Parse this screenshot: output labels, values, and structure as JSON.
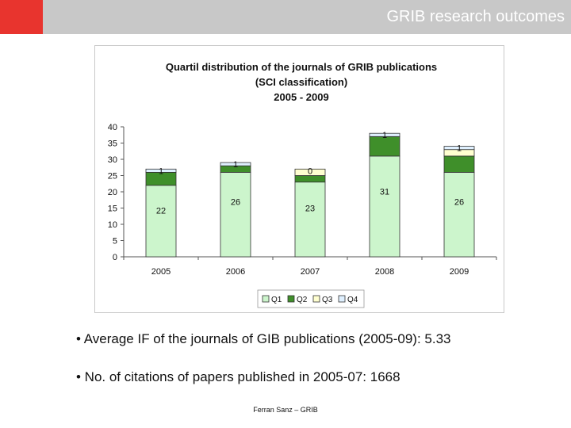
{
  "header": {
    "title": "GRIB research outcomes",
    "accent_color": "#e8342e",
    "bar_color": "#c8c8c8"
  },
  "chart_data": {
    "type": "bar",
    "stacked": true,
    "title_lines": [
      "Quartil distribution of the journals of GRIB publications",
      "(SCI classification)",
      "2005 - 2009"
    ],
    "categories": [
      "2005",
      "2006",
      "2007",
      "2008",
      "2009"
    ],
    "series": [
      {
        "name": "Q1",
        "values": [
          22,
          26,
          23,
          31,
          26
        ],
        "color": "#ccf5cc"
      },
      {
        "name": "Q2",
        "values": [
          4,
          2,
          2,
          6,
          5
        ],
        "color": "#3f8f2a"
      },
      {
        "name": "Q3",
        "values": [
          0,
          0,
          2,
          0,
          2
        ],
        "color": "#ffffd0"
      },
      {
        "name": "Q4",
        "values": [
          1,
          1,
          0,
          1,
          1
        ],
        "color": "#dff0ff"
      }
    ],
    "data_labels": [
      {
        "category": "2005",
        "series": "Q1",
        "text": "22"
      },
      {
        "category": "2006",
        "series": "Q1",
        "text": "26"
      },
      {
        "category": "2007",
        "series": "Q1",
        "text": "23"
      },
      {
        "category": "2008",
        "series": "Q1",
        "text": "31"
      },
      {
        "category": "2009",
        "series": "Q1",
        "text": "26"
      },
      {
        "category": "2005",
        "series": "Q4",
        "text": "1"
      },
      {
        "category": "2006",
        "series": "Q4",
        "text": "1"
      },
      {
        "category": "2007",
        "series": "Q4",
        "text": "0"
      },
      {
        "category": "2008",
        "series": "Q4",
        "text": "1"
      },
      {
        "category": "2009",
        "series": "Q4",
        "text": "1"
      }
    ],
    "yticks": [
      0,
      5,
      10,
      15,
      20,
      25,
      30,
      35,
      40
    ],
    "ylim": [
      0,
      40
    ],
    "legend_position": "bottom",
    "grid": false
  },
  "bullets": [
    "• Average IF of the journals of GIB publications (2005-09): 5.33",
    "• No. of citations of papers published in 2005-07: 1668"
  ],
  "footer": "Ferran Sanz – GRIB"
}
